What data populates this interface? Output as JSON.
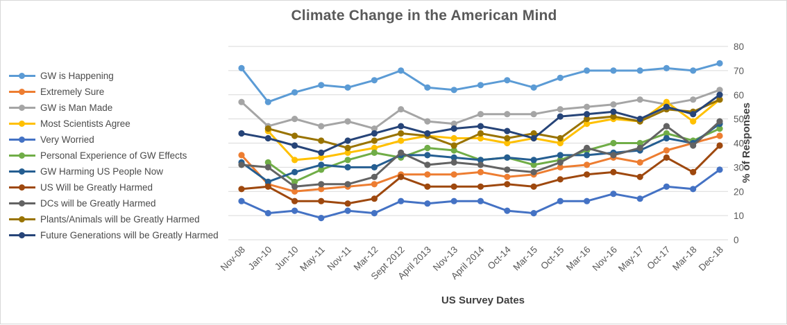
{
  "title": "Climate Change in the American Mind",
  "x_axis": {
    "title": "US Survey Dates"
  },
  "y_axis": {
    "title": "% of Responses",
    "ticks": [
      0,
      10,
      20,
      30,
      40,
      50,
      60,
      70,
      80
    ]
  },
  "styles": {
    "gridline_color": "#d9d9d9",
    "tick_label_color": "#595959",
    "title_color": "#595959",
    "axis_title_color": "#404040"
  },
  "chart_data": {
    "type": "line",
    "title": "Climate Change in the American Mind",
    "xlabel": "US Survey Dates",
    "ylabel": "% of Responses",
    "ylim": [
      0,
      80
    ],
    "grid": true,
    "legend_position": "left",
    "y_axis_side": "right",
    "marker": "circle",
    "categories": [
      "Nov-08",
      "Jan-10",
      "Jun-10",
      "May-11",
      "Nov-11",
      "Mar-12",
      "Sept 2012",
      "April 2013",
      "Nov-13",
      "April 2014",
      "Oct-14",
      "Mar-15",
      "Oct-15",
      "Mar-16",
      "Nov-16",
      "May-17",
      "Oct-17",
      "Mar-18",
      "Dec-18"
    ],
    "series": [
      {
        "name": "GW is Happening",
        "color": "#5B9BD5",
        "values": [
          71,
          57,
          61,
          64,
          63,
          66,
          70,
          63,
          62,
          64,
          66,
          63,
          67,
          70,
          70,
          70,
          71,
          70,
          73
        ]
      },
      {
        "name": "Extremely Sure",
        "color": "#ED7D31",
        "values": [
          35,
          23,
          20,
          21,
          22,
          23,
          27,
          27,
          27,
          28,
          26,
          27,
          30,
          31,
          34,
          32,
          37,
          40,
          43
        ]
      },
      {
        "name": "GW is Man Made",
        "color": "#A5A5A5",
        "values": [
          57,
          47,
          50,
          47,
          49,
          46,
          54,
          49,
          48,
          52,
          52,
          52,
          54,
          55,
          56,
          58,
          56,
          58,
          62
        ]
      },
      {
        "name": "Most Scientists Agree",
        "color": "#FFC000",
        "values": [
          null,
          45,
          33,
          34,
          36,
          38,
          41,
          43,
          42,
          42,
          40,
          42,
          40,
          48,
          50,
          49,
          57,
          49,
          58
        ]
      },
      {
        "name": "Very Worried",
        "color": "#4472C4",
        "values": [
          16,
          11,
          12,
          9,
          12,
          11,
          16,
          15,
          16,
          16,
          12,
          11,
          16,
          16,
          19,
          17,
          22,
          21,
          29
        ]
      },
      {
        "name": "Personal Experience of GW Effects",
        "color": "#70AD47",
        "values": [
          null,
          32,
          24,
          29,
          33,
          36,
          34,
          38,
          37,
          33,
          34,
          31,
          33,
          37,
          40,
          40,
          44,
          41,
          46
        ]
      },
      {
        "name": "GW Harming US People Now",
        "color": "#255E91",
        "values": [
          32,
          24,
          28,
          31,
          30,
          30,
          35,
          35,
          34,
          33,
          34,
          33,
          35,
          35,
          36,
          37,
          42,
          40,
          48
        ]
      },
      {
        "name": "US Will be Greatly Harmed",
        "color": "#9E480E",
        "values": [
          21,
          22,
          16,
          16,
          15,
          17,
          26,
          22,
          22,
          22,
          23,
          22,
          25,
          27,
          28,
          26,
          34,
          28,
          39
        ]
      },
      {
        "name": "DCs will be Greatly Harmed",
        "color": "#636363",
        "values": [
          31,
          30,
          22,
          23,
          23,
          26,
          36,
          31,
          32,
          31,
          29,
          28,
          32,
          38,
          35,
          38,
          47,
          39,
          49
        ]
      },
      {
        "name": "Plants/Animals will be Greatly Harmed",
        "color": "#997300",
        "values": [
          null,
          46,
          43,
          41,
          38,
          41,
          44,
          43,
          39,
          44,
          42,
          44,
          42,
          50,
          51,
          49,
          54,
          53,
          58
        ]
      },
      {
        "name": "Future Generations will be Greatly Harmed",
        "color": "#264478",
        "values": [
          44,
          42,
          39,
          36,
          41,
          44,
          47,
          44,
          46,
          47,
          45,
          42,
          51,
          52,
          53,
          50,
          55,
          52,
          60
        ]
      }
    ]
  }
}
